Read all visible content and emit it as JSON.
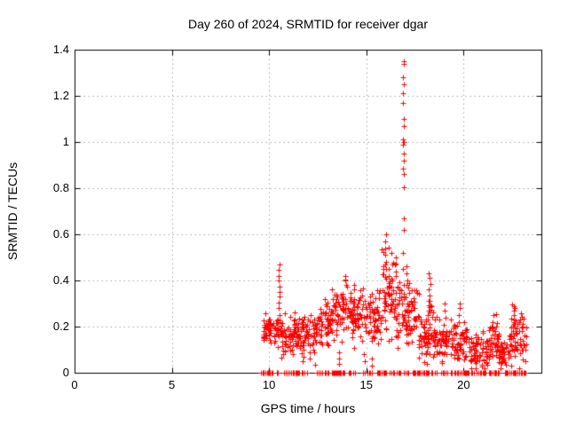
{
  "chart_data": {
    "type": "scatter",
    "title": "Day 260 of 2024, SRMTID for receiver dgar",
    "xlabel": "GPS time / hours",
    "ylabel": "SRMTID / TECUs",
    "xlim": [
      0,
      24
    ],
    "ylim": [
      0,
      1.4
    ],
    "xticks": [
      "0",
      "5",
      "10",
      "15",
      "20"
    ],
    "xtick_values": [
      0,
      5,
      10,
      15,
      20
    ],
    "yticks": [
      "0",
      "0.2",
      "0.4",
      "0.6",
      "0.8",
      "1",
      "1.2",
      "1.4"
    ],
    "ytick_values": [
      0,
      0.2,
      0.4,
      0.6,
      0.8,
      1,
      1.2,
      1.4
    ],
    "grid": true,
    "legend": "none",
    "marker": "plus",
    "marker_size": 7,
    "colors": {
      "points": "#ff0000",
      "axis": "#000000",
      "grid": "#a6a6a6",
      "text": "#000000",
      "background": "#ffffff"
    },
    "data_x_extent": [
      9.65,
      23.25
    ],
    "seed": 2024260,
    "clamp": [
      0.02,
      0.62
    ],
    "scatter_segments": [
      [
        9.7,
        10.4,
        55,
        0.185,
        0.032
      ],
      [
        10.4,
        10.6,
        15,
        0.2,
        0.04
      ],
      [
        10.6,
        11.4,
        60,
        0.17,
        0.04
      ],
      [
        11.4,
        12.4,
        70,
        0.16,
        0.045
      ],
      [
        12.4,
        13.2,
        60,
        0.21,
        0.05
      ],
      [
        13.2,
        14.2,
        75,
        0.27,
        0.055
      ],
      [
        14.2,
        15.1,
        65,
        0.25,
        0.05
      ],
      [
        15.1,
        15.8,
        55,
        0.24,
        0.06
      ],
      [
        15.8,
        16.25,
        45,
        0.33,
        0.1
      ],
      [
        16.25,
        16.75,
        45,
        0.3,
        0.09
      ],
      [
        16.75,
        17.05,
        20,
        0.28,
        0.06
      ],
      [
        17.05,
        17.7,
        50,
        0.25,
        0.07
      ],
      [
        17.7,
        18.15,
        40,
        0.16,
        0.05
      ],
      [
        18.15,
        18.45,
        25,
        0.2,
        0.06
      ],
      [
        18.45,
        19.4,
        70,
        0.14,
        0.05
      ],
      [
        19.4,
        20.2,
        60,
        0.13,
        0.05
      ],
      [
        20.2,
        21.3,
        75,
        0.09,
        0.04
      ],
      [
        21.3,
        21.8,
        40,
        0.14,
        0.05
      ],
      [
        21.8,
        22.4,
        45,
        0.1,
        0.04
      ],
      [
        22.4,
        23.0,
        45,
        0.15,
        0.06
      ],
      [
        23.0,
        23.25,
        15,
        0.12,
        0.05
      ]
    ],
    "spike_columns": [
      {
        "x": 10.52,
        "jitter": 0.04,
        "ys": [
          0.47,
          0.445,
          0.42,
          0.4,
          0.375,
          0.35,
          0.33,
          0.305,
          0.28
        ]
      },
      {
        "x": 11.2,
        "jitter": 0.04,
        "ys": [
          0.12,
          0.1,
          0.08
        ]
      },
      {
        "x": 11.75,
        "jitter": 0.04,
        "ys": [
          0.12,
          0.1,
          0.07,
          0.05
        ]
      },
      {
        "x": 12.1,
        "jitter": 0.04,
        "ys": [
          0.09,
          0.06
        ]
      },
      {
        "x": 13.6,
        "jitter": 0.04,
        "ys": [
          0.09,
          0.06,
          0.04
        ]
      },
      {
        "x": 13.95,
        "jitter": 0.05,
        "ys": [
          0.42,
          0.4,
          0.38
        ]
      },
      {
        "x": 14.4,
        "jitter": 0.05,
        "ys": [
          0.38,
          0.36
        ]
      },
      {
        "x": 14.9,
        "jitter": 0.04,
        "ys": [
          0.08,
          0.05
        ]
      },
      {
        "x": 15.3,
        "jitter": 0.04,
        "ys": [
          0.06,
          0.03
        ]
      },
      {
        "x": 16.0,
        "jitter": 0.05,
        "ys": [
          0.6,
          0.57,
          0.54,
          0.51,
          0.48,
          0.45
        ]
      },
      {
        "x": 16.5,
        "jitter": 0.05,
        "ys": [
          0.5,
          0.47,
          0.44
        ]
      },
      {
        "x": 16.92,
        "jitter": 0.035,
        "ys": [
          1.35,
          1.34,
          1.28,
          1.25,
          1.21,
          1.17,
          1.1,
          1.07,
          1.01,
          1.0,
          0.99,
          0.95,
          0.92,
          0.885,
          0.86,
          0.805,
          0.67,
          0.62,
          0.52,
          0.45,
          0.38,
          0.33
        ]
      },
      {
        "x": 17.1,
        "jitter": 0.05,
        "ys": [
          0.46,
          0.43,
          0.4,
          0.37
        ]
      },
      {
        "x": 18.25,
        "jitter": 0.05,
        "ys": [
          0.43,
          0.41,
          0.385,
          0.36,
          0.335,
          0.31,
          0.285
        ]
      },
      {
        "x": 19.0,
        "jitter": 0.05,
        "ys": [
          0.3,
          0.27
        ]
      },
      {
        "x": 19.8,
        "jitter": 0.05,
        "ys": [
          0.3,
          0.28,
          0.25,
          0.22
        ]
      },
      {
        "x": 21.5,
        "jitter": 0.05,
        "ys": [
          0.25,
          0.22
        ]
      },
      {
        "x": 22.6,
        "jitter": 0.05,
        "ys": [
          0.29,
          0.27,
          0.25,
          0.23,
          0.21
        ]
      }
    ],
    "zero_segments": [
      [
        9.55,
        10.1,
        12
      ],
      [
        10.1,
        12.0,
        25
      ],
      [
        12.4,
        14.5,
        30
      ],
      [
        14.8,
        15.3,
        10
      ],
      [
        15.5,
        17.2,
        25
      ],
      [
        17.4,
        19.2,
        35
      ],
      [
        19.3,
        21.0,
        30
      ],
      [
        21.0,
        23.2,
        45
      ]
    ]
  }
}
